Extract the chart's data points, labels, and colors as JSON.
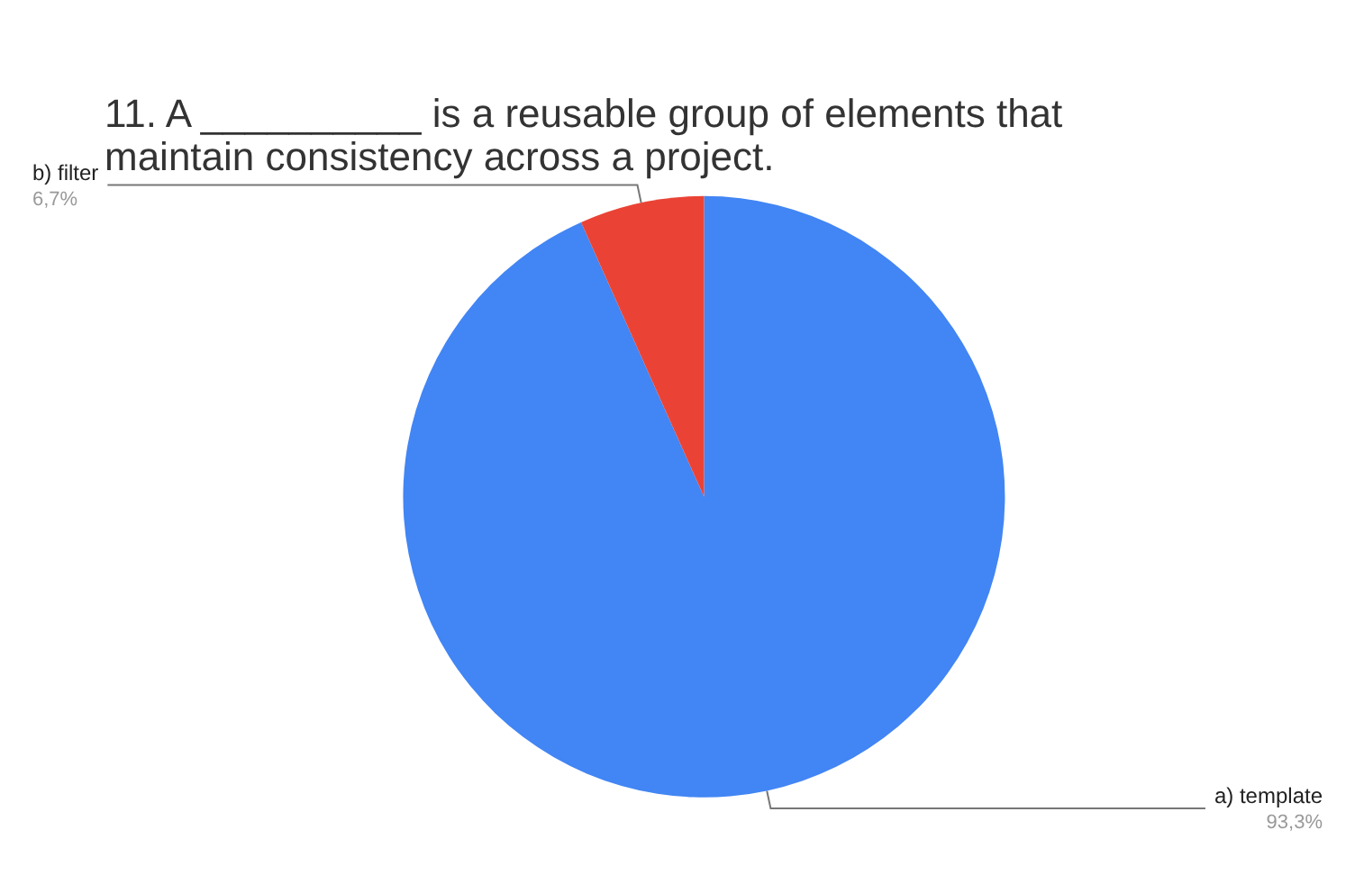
{
  "chart_data": {
    "type": "pie",
    "title": "11. A __________ is a reusable group of elements that maintain consistency across a project.",
    "categories": [
      "a) template",
      "b) filter"
    ],
    "values": [
      93.3,
      6.7
    ],
    "colors": [
      "#4285f4",
      "#ea4335"
    ],
    "value_labels": [
      "93,3%",
      "6,7%"
    ],
    "legend": false
  }
}
